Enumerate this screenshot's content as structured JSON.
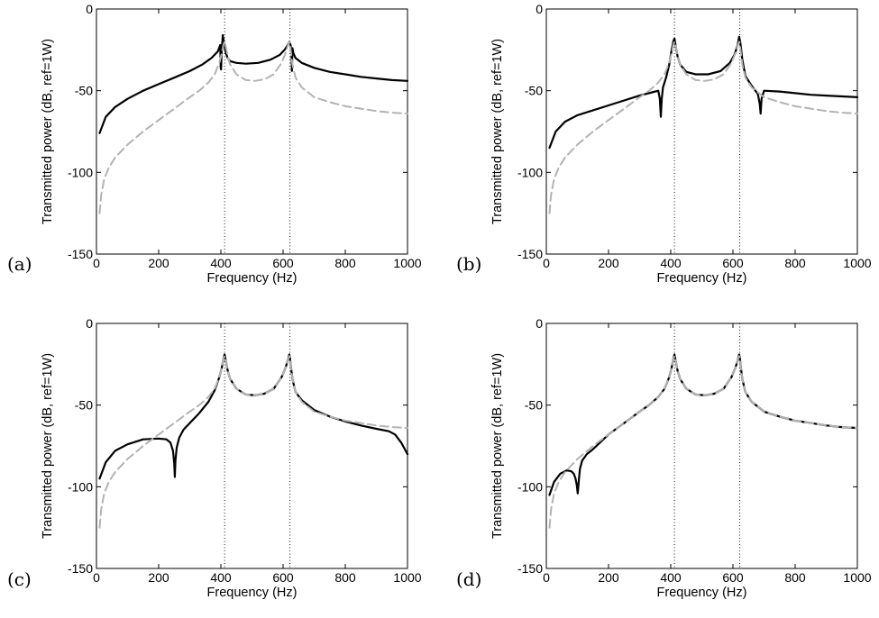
{
  "chart_data": [
    {
      "type": "line",
      "panel_label": "(a)",
      "xlabel": "Frequency (Hz)",
      "ylabel": "Transmitted power (dB, ref=1W)",
      "xlim": [
        0,
        1000
      ],
      "ylim": [
        -150,
        0
      ],
      "x_ticks": [
        0,
        200,
        400,
        600,
        800,
        1000
      ],
      "y_ticks": [
        0,
        -50,
        -100,
        -150
      ],
      "grid": false,
      "reference_lines_x": [
        412,
        622
      ],
      "series": [
        {
          "style": "solid-black",
          "x": [
            10,
            30,
            60,
            100,
            150,
            200,
            250,
            300,
            340,
            370,
            390,
            398,
            399.5,
            400.5,
            402,
            406,
            411,
            416,
            422,
            430,
            450,
            480,
            520,
            560,
            590,
            605,
            615,
            620,
            624,
            627,
            628.5,
            630,
            633,
            640,
            660,
            700,
            750,
            800,
            850,
            900,
            950,
            1000
          ],
          "y": [
            -76,
            -66,
            -60,
            -55,
            -50,
            -46,
            -42,
            -38,
            -34,
            -30,
            -26,
            -22,
            -36,
            -37,
            -28,
            -16,
            -22,
            -27,
            -30,
            -32,
            -33,
            -33.5,
            -33,
            -31,
            -28,
            -25,
            -22,
            -20,
            -22,
            -26,
            -38,
            -24,
            -27,
            -30,
            -33,
            -36,
            -38.5,
            -40,
            -41.5,
            -42.5,
            -43.5,
            -44
          ]
        },
        {
          "style": "dashed-gray",
          "x": [
            10,
            15,
            25,
            40,
            60,
            100,
            150,
            200,
            250,
            300,
            330,
            360,
            380,
            395,
            403,
            408,
            412,
            416,
            422,
            430,
            450,
            480,
            510,
            540,
            570,
            595,
            608,
            616,
            620,
            622,
            625,
            630,
            640,
            660,
            700,
            750,
            800,
            850,
            900,
            950,
            1000
          ],
          "y": [
            -125,
            -114,
            -104,
            -97,
            -91,
            -83,
            -75,
            -68,
            -61,
            -54,
            -50,
            -45,
            -40,
            -33,
            -27,
            -22,
            -20,
            -23,
            -29,
            -34,
            -40,
            -43.5,
            -44,
            -43,
            -40,
            -33,
            -27,
            -22,
            -20,
            -21,
            -26,
            -34,
            -42,
            -48,
            -54,
            -57,
            -59.5,
            -61,
            -62.5,
            -63.5,
            -64
          ]
        }
      ]
    },
    {
      "type": "line",
      "panel_label": "(b)",
      "xlabel": "Frequency (Hz)",
      "ylabel": "Transmitted power (dB, ref=1W)",
      "xlim": [
        0,
        1000
      ],
      "ylim": [
        -150,
        0
      ],
      "x_ticks": [
        0,
        200,
        400,
        600,
        800,
        1000
      ],
      "y_ticks": [
        0,
        -50,
        -100,
        -150
      ],
      "grid": false,
      "reference_lines_x": [
        412,
        622
      ],
      "series": [
        {
          "style": "solid-black",
          "x": [
            10,
            30,
            60,
            100,
            150,
            200,
            250,
            300,
            340,
            360,
            365,
            368,
            371,
            375,
            385,
            395,
            403,
            408,
            412,
            416,
            422,
            430,
            450,
            480,
            520,
            560,
            590,
            605,
            615,
            620,
            624,
            630,
            640,
            660,
            680,
            686,
            689,
            692,
            700,
            750,
            800,
            850,
            900,
            950,
            1000
          ],
          "y": [
            -85,
            -75,
            -69,
            -65,
            -62,
            -59,
            -56,
            -53,
            -51,
            -50,
            -55,
            -66,
            -55,
            -48,
            -42,
            -34,
            -25,
            -20,
            -18,
            -23,
            -29,
            -34,
            -38.5,
            -40,
            -40,
            -38,
            -33,
            -28,
            -22,
            -17,
            -21,
            -31,
            -41,
            -47,
            -52,
            -58,
            -64,
            -55,
            -50,
            -50.5,
            -51.5,
            -52.5,
            -53,
            -53.5,
            -54
          ]
        },
        {
          "style": "dashed-gray",
          "x": [
            10,
            15,
            25,
            40,
            60,
            100,
            150,
            200,
            250,
            300,
            330,
            360,
            380,
            395,
            403,
            408,
            412,
            416,
            422,
            430,
            450,
            480,
            510,
            540,
            570,
            595,
            608,
            616,
            620,
            622,
            625,
            630,
            640,
            660,
            700,
            750,
            800,
            850,
            900,
            950,
            1000
          ],
          "y": [
            -125,
            -114,
            -104,
            -97,
            -91,
            -83,
            -75,
            -68,
            -61,
            -54,
            -50,
            -45,
            -40,
            -33,
            -27,
            -22,
            -20,
            -23,
            -29,
            -34,
            -40,
            -43.5,
            -44,
            -43,
            -40,
            -33,
            -27,
            -22,
            -20,
            -21,
            -26,
            -34,
            -42,
            -48,
            -54,
            -57,
            -59.5,
            -61,
            -62.5,
            -63.5,
            -64
          ]
        }
      ]
    },
    {
      "type": "line",
      "panel_label": "(c)",
      "xlabel": "Frequency (Hz)",
      "ylabel": "Transmitted power (dB, ref=1W)",
      "xlim": [
        0,
        1000
      ],
      "ylim": [
        -150,
        0
      ],
      "x_ticks": [
        0,
        200,
        400,
        600,
        800,
        1000
      ],
      "y_ticks": [
        0,
        -50,
        -100,
        -150
      ],
      "grid": false,
      "reference_lines_x": [
        412,
        622
      ],
      "series": [
        {
          "style": "solid-black",
          "x": [
            10,
            30,
            60,
            100,
            150,
            200,
            225,
            238,
            246,
            250,
            252,
            254,
            258,
            266,
            280,
            300,
            330,
            360,
            380,
            395,
            403,
            408,
            412,
            416,
            422,
            430,
            450,
            480,
            510,
            540,
            570,
            595,
            608,
            616,
            620,
            622,
            625,
            630,
            640,
            660,
            700,
            750,
            800,
            850,
            900,
            940,
            960,
            980,
            1000
          ],
          "y": [
            -95,
            -85,
            -78,
            -74,
            -71,
            -70.5,
            -71,
            -73,
            -78,
            -86,
            -94,
            -84,
            -76,
            -70,
            -65,
            -61,
            -55,
            -48,
            -41,
            -33,
            -27,
            -22,
            -19,
            -23,
            -29,
            -34,
            -40,
            -43.5,
            -44,
            -43,
            -40,
            -33,
            -27,
            -22,
            -19,
            -21,
            -26,
            -34,
            -42,
            -47,
            -53,
            -57,
            -60,
            -62.5,
            -64.5,
            -66,
            -68,
            -73,
            -80
          ]
        },
        {
          "style": "dashed-gray",
          "x": [
            10,
            15,
            25,
            40,
            60,
            100,
            150,
            200,
            250,
            300,
            330,
            360,
            380,
            395,
            403,
            408,
            412,
            416,
            422,
            430,
            450,
            480,
            510,
            540,
            570,
            595,
            608,
            616,
            620,
            622,
            625,
            630,
            640,
            660,
            700,
            750,
            800,
            850,
            900,
            950,
            1000
          ],
          "y": [
            -125,
            -114,
            -104,
            -97,
            -91,
            -83,
            -75,
            -68,
            -61,
            -54,
            -50,
            -45,
            -40,
            -33,
            -27,
            -22,
            -20,
            -23,
            -29,
            -34,
            -40,
            -43.5,
            -44,
            -43,
            -40,
            -33,
            -27,
            -22,
            -20,
            -21,
            -26,
            -34,
            -42,
            -48,
            -54,
            -57,
            -59.5,
            -61,
            -62.5,
            -63.5,
            -64
          ]
        }
      ]
    },
    {
      "type": "line",
      "panel_label": "(d)",
      "xlabel": "Frequency (Hz)",
      "ylabel": "Transmitted power (dB, ref=1W)",
      "xlim": [
        0,
        1000
      ],
      "ylim": [
        -150,
        0
      ],
      "x_ticks": [
        0,
        200,
        400,
        600,
        800,
        1000
      ],
      "y_ticks": [
        0,
        -50,
        -100,
        -150
      ],
      "grid": false,
      "reference_lines_x": [
        412,
        622
      ],
      "series": [
        {
          "style": "solid-black",
          "x": [
            10,
            25,
            45,
            65,
            80,
            88,
            94,
            98,
            101,
            103,
            105,
            108,
            115,
            130,
            150,
            200,
            250,
            300,
            330,
            360,
            380,
            395,
            403,
            408,
            412,
            416,
            422,
            430,
            450,
            480,
            510,
            540,
            570,
            595,
            608,
            616,
            620,
            622,
            625,
            630,
            640,
            660,
            700,
            750,
            800,
            850,
            900,
            950,
            1000
          ],
          "y": [
            -105,
            -97,
            -92,
            -90,
            -90.5,
            -92,
            -95,
            -99,
            -104,
            -100,
            -95,
            -89,
            -84,
            -80,
            -77,
            -68,
            -61,
            -54,
            -50,
            -45,
            -40,
            -33,
            -27,
            -22,
            -19,
            -23,
            -29,
            -34,
            -40,
            -43.5,
            -44,
            -43,
            -40,
            -33,
            -27,
            -22,
            -19,
            -21,
            -26,
            -34,
            -42,
            -48,
            -54,
            -57,
            -59.5,
            -61,
            -62.5,
            -63.5,
            -64
          ]
        },
        {
          "style": "dashed-gray",
          "x": [
            10,
            15,
            25,
            40,
            60,
            100,
            150,
            200,
            250,
            300,
            330,
            360,
            380,
            395,
            403,
            408,
            412,
            416,
            422,
            430,
            450,
            480,
            510,
            540,
            570,
            595,
            608,
            616,
            620,
            622,
            625,
            630,
            640,
            660,
            700,
            750,
            800,
            850,
            900,
            950,
            1000
          ],
          "y": [
            -125,
            -114,
            -104,
            -97,
            -91,
            -83,
            -75,
            -68,
            -61,
            -54,
            -50,
            -45,
            -40,
            -33,
            -27,
            -22,
            -20,
            -23,
            -29,
            -34,
            -40,
            -43.5,
            -44,
            -43,
            -40,
            -33,
            -27,
            -22,
            -20,
            -21,
            -26,
            -34,
            -42,
            -48,
            -54,
            -57,
            -59.5,
            -61,
            -62.5,
            -63.5,
            -64
          ]
        }
      ]
    }
  ]
}
